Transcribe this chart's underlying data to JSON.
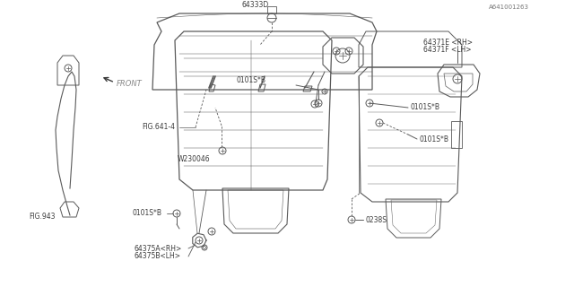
{
  "bg_color": "#ffffff",
  "line_color": "#5a5a5a",
  "text_color": "#3a3a3a",
  "fig_width": 6.4,
  "fig_height": 3.2,
  "dpi": 100,
  "labels": {
    "part1": "64375A<RH>",
    "part2": "64375B<LH>",
    "part3": "0101S*B",
    "part4": "W230046",
    "part5": "FIG.641-4",
    "part6": "FIG.943",
    "part7": "0238S",
    "part8": "0101S*B",
    "part9": "0101S*B",
    "part10": "0101S*B",
    "part11": "64371E <RH>",
    "part12": "64371F <LH>",
    "part13": "64333D",
    "front_label": "FRONT",
    "catalog_num": "A641001263"
  }
}
